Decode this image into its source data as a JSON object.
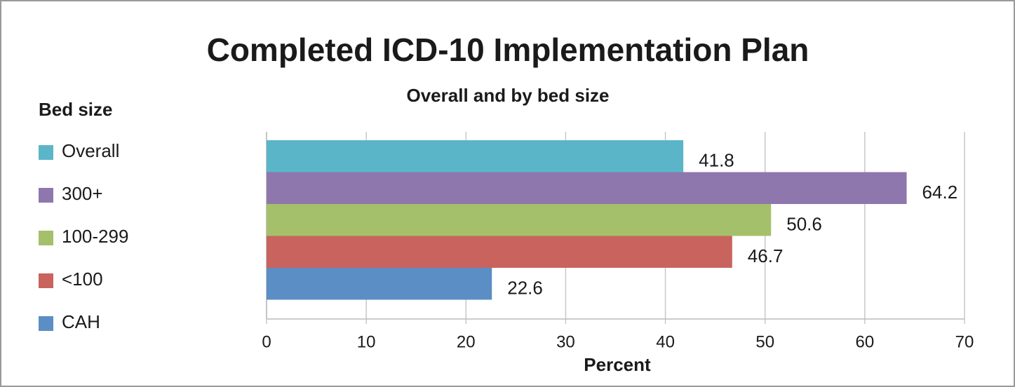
{
  "chart_data": {
    "type": "bar",
    "orientation": "horizontal",
    "title": "Completed ICD-10 Implementation Plan",
    "subtitle": "Overall and by bed size",
    "legend_title": "Bed size",
    "x_label": "Percent",
    "categories": [
      null
    ],
    "series": [
      {
        "name": "Overall",
        "color": "#5bb5c8",
        "values": [
          41.8
        ]
      },
      {
        "name": "300+",
        "color": "#8e77ad",
        "values": [
          64.2
        ]
      },
      {
        "name": "100-299",
        "color": "#a4c06b",
        "values": [
          50.6
        ]
      },
      {
        "name": "<100",
        "color": "#c9635d",
        "values": [
          46.7
        ]
      },
      {
        "name": "CAH",
        "color": "#5b8ec4",
        "values": [
          22.6
        ]
      }
    ],
    "xlim": [
      0,
      70
    ],
    "xticks": [
      0,
      10,
      20,
      30,
      40,
      50,
      60,
      70
    ],
    "grid": true,
    "legend": "left"
  }
}
